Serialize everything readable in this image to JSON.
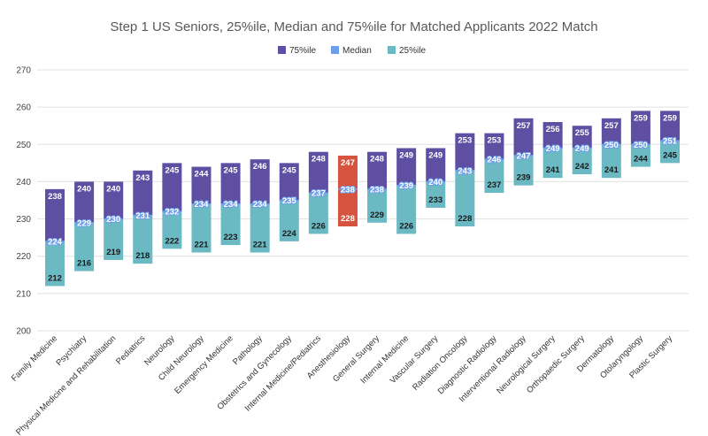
{
  "chart_data": {
    "type": "bar",
    "stacked_range": true,
    "title": "Step 1 US Seniors, 25%ile, Median and 75%ile for Matched Applicants 2022 Match",
    "xlabel": "",
    "ylabel": "",
    "ylim": [
      200,
      270
    ],
    "yticks": [
      200,
      210,
      220,
      230,
      240,
      250,
      260,
      270
    ],
    "grid": true,
    "legend_position": "top",
    "legend": [
      "75%ile",
      "Median",
      "25%ile"
    ],
    "colors": {
      "p75": "#5e4fa2",
      "median": "#6d9eeb",
      "p25": "#6bb9c3",
      "highlight": "#d65340",
      "grid": "#e0e0e0"
    },
    "highlight_category": "Anesthesiology",
    "categories": [
      "Family Medicine",
      "Psychiatry",
      "Physical Medicine and Rehabilitation",
      "Pediatrics",
      "Neurology",
      "Child Neurology",
      "Emergency Medicine",
      "Pathology",
      "Obstetrics and Gynecology",
      "Internal Medicine/Pediatrics",
      "Anesthesiology",
      "General Surgery",
      "Internal Medicine",
      "Vascular Surgery",
      "Radiation Oncology",
      "Diagnostic Radiology",
      "Interventional Radiology",
      "Neurological Surgery",
      "Orthopaedic Surgery",
      "Dermatology",
      "Otolaryngology",
      "Plastic Surgery"
    ],
    "series": [
      {
        "name": "75%ile",
        "values": [
          238,
          240,
          240,
          243,
          245,
          244,
          245,
          246,
          245,
          248,
          247,
          248,
          249,
          249,
          253,
          253,
          257,
          256,
          255,
          257,
          259,
          259
        ]
      },
      {
        "name": "Median",
        "values": [
          224,
          229,
          230,
          231,
          232,
          234,
          234,
          234,
          235,
          237,
          238,
          238,
          239,
          240,
          243,
          246,
          247,
          249,
          249,
          250,
          250,
          251
        ]
      },
      {
        "name": "25%ile",
        "values": [
          212,
          216,
          219,
          218,
          222,
          221,
          223,
          221,
          224,
          226,
          228,
          229,
          226,
          233,
          228,
          237,
          239,
          241,
          242,
          241,
          244,
          245
        ]
      }
    ]
  }
}
